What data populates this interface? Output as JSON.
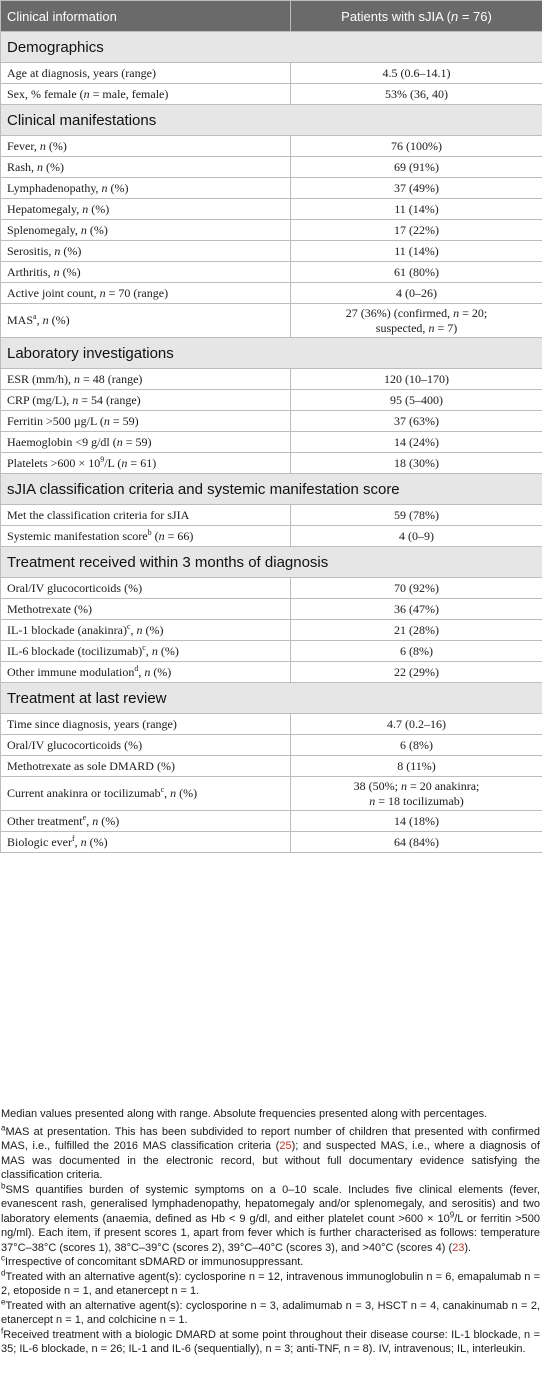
{
  "header": {
    "col1": "Clinical information",
    "col2_prefix": "Patients with sJIA (",
    "col2_n": "n",
    "col2_suffix": " = 76)"
  },
  "sections": {
    "demographics": "Demographics",
    "clinical": "Clinical manifestations",
    "lab": "Laboratory investigations",
    "criteria": "sJIA classification criteria and systemic manifestation score",
    "treat3m": "Treatment received within 3 months of diagnosis",
    "last": "Treatment at last review"
  },
  "rows": {
    "age": {
      "label": "Age at diagnosis, years (range)",
      "value": "4.5 (0.6–14.1)"
    },
    "sex": {
      "a": "Sex, % female (",
      "n": "n",
      "b": " = male, female)",
      "value": "53% (36, 40)"
    },
    "fever": {
      "a": "Fever, ",
      "n": "n",
      "b": " (%)",
      "value": "76 (100%)"
    },
    "rash": {
      "a": "Rash, ",
      "n": "n",
      "b": " (%)",
      "value": "69 (91%)"
    },
    "lymph": {
      "a": "Lymphadenopathy, ",
      "n": "n",
      "b": " (%)",
      "value": "37 (49%)"
    },
    "hepato": {
      "a": "Hepatomegaly, ",
      "n": "n",
      "b": " (%)",
      "value": "11 (14%)"
    },
    "spleno": {
      "a": "Splenomegaly, ",
      "n": "n",
      "b": " (%)",
      "value": "17 (22%)"
    },
    "sero": {
      "a": "Serositis, ",
      "n": "n",
      "b": " (%)",
      "value": "11 (14%)"
    },
    "arth": {
      "a": "Arthritis, ",
      "n": "n",
      "b": " (%)",
      "value": "61 (80%)"
    },
    "ajc": {
      "a": "Active joint count, ",
      "n": "n",
      "b": " = 70 (range)",
      "value": "4 (0–26)"
    },
    "mas": {
      "a": "MAS",
      "sup": "a",
      "b": ", ",
      "n": "n",
      "c": " (%)",
      "v1": "27 (36%) (confirmed, ",
      "vn1": "n",
      "v2": " = 20;",
      "v3": "suspected, ",
      "vn2": "n",
      "v4": " = 7)"
    },
    "esr": {
      "a": "ESR (mm/h), ",
      "n": "n",
      "b": " = 48 (range)",
      "value": "120 (10–170)"
    },
    "crp": {
      "a": "CRP (mg/L), ",
      "n": "n",
      "b": " = 54 (range)",
      "value": "95 (5–400)"
    },
    "ferr": {
      "a": "Ferritin >500 µg/L (",
      "n": "n",
      "b": " = 59)",
      "value": "37 (63%)"
    },
    "hb": {
      "a": "Haemoglobin <9 g/dl (",
      "n": "n",
      "b": " = 59)",
      "value": "14 (24%)"
    },
    "plt": {
      "a": "Platelets >600 × 10",
      "sup": "9",
      "b": "/L (",
      "n": "n",
      "c": " = 61)",
      "value": "18 (30%)"
    },
    "met": {
      "label": "Met the classification criteria for sJIA",
      "value": "59 (78%)"
    },
    "sms": {
      "a": "Systemic manifestation score",
      "sup": "b",
      "b": " (",
      "n": "n",
      "c": " = 66)",
      "value": "4 (0–9)"
    },
    "gc3": {
      "label": "Oral/IV glucocorticoids (%)",
      "value": "70 (92%)"
    },
    "mtx3": {
      "label": "Methotrexate (%)",
      "value": "36 (47%)"
    },
    "il1": {
      "a": "IL-1 blockade (anakinra)",
      "sup": "c",
      "b": ", ",
      "n": "n",
      "c": " (%)",
      "value": "21 (28%)"
    },
    "il6": {
      "a": "IL-6 blockade (tocilizumab)",
      "sup": "c",
      "b": ", ",
      "n": "n",
      "c": " (%)",
      "value": "6 (8%)"
    },
    "oim": {
      "a": "Other immune modulation",
      "sup": "d",
      "b": ", ",
      "n": "n",
      "c": " (%)",
      "value": "22 (29%)"
    },
    "time": {
      "label": "Time since diagnosis, years (range)",
      "value": "4.7 (0.2–16)"
    },
    "gcl": {
      "label": "Oral/IV glucocorticoids (%)",
      "value": "6 (8%)"
    },
    "mtxl": {
      "label": "Methotrexate as sole DMARD (%)",
      "value": "8 (11%)"
    },
    "cur": {
      "a": "Current anakinra or tocilizumab",
      "sup": "c",
      "b": ", ",
      "n": "n",
      "c": " (%)",
      "v1": "38 (50%; ",
      "vn1": "n",
      "v2": " = 20 anakinra;",
      "vn2": "n",
      "v3": " = 18 tocilizumab)"
    },
    "oth": {
      "a": "Other treatment",
      "sup": "e",
      "b": ", ",
      "n": "n",
      "c": " (%)",
      "value": "14 (18%)"
    },
    "bio": {
      "a": "Biologic ever",
      "sup": "f",
      "b": ", ",
      "n": "n",
      "c": " (%)",
      "value": "64 (84%)"
    }
  },
  "notes": {
    "intro": "Median values presented along with range. Absolute frequencies presented along with percentages.",
    "a_mark": "a",
    "a_text1": "MAS at presentation. This has been subdivided to report number of children that presented with confirmed MAS, i.e., fulfilled the 2016 MAS classification criteria (",
    "a_ref": "25",
    "a_text2": "); and suspected MAS, i.e., where a diagnosis of MAS was documented in the electronic record, but without full documentary evidence satisfying the classification criteria.",
    "b_mark": "b",
    "b_text1": "SMS quantifies burden of systemic symptoms on a 0–10 scale. Includes five clinical elements (fever, evanescent rash, generalised lymphadenopathy, hepatomegaly and/or splenomegaly, and serositis) and two laboratory elements (anaemia, defined as Hb < 9 g/dl, and either platelet count >600 × 10",
    "b_sup": "9",
    "b_text2": "/L or ferritin >500 ng/ml). Each item, if present scores 1, apart from fever which is further characterised as follows: temperature 37°C–38°C (scores 1), 38°C–39°C (scores 2), 39°C–40°C (scores 3), and >40°C (scores 4) (",
    "b_ref": "23",
    "b_text3": ").",
    "c_mark": "c",
    "c_text": "Irrespective of concomitant sDMARD or immunosuppressant.",
    "d_mark": "d",
    "d_text": "Treated with an alternative agent(s): cyclosporine n = 12, intravenous immunoglobulin n = 6, emapalumab n = 2, etoposide n = 1, and etanercept n = 1.",
    "e_mark": "e",
    "e_text": "Treated with an alternative agent(s): cyclosporine n = 3, adalimumab n = 3, HSCT n = 4, canakinumab n = 2, etanercept n = 1, and colchicine n = 1.",
    "f_mark": "f",
    "f_text": "Received treatment with a biologic DMARD at some point throughout their disease course: IL-1 blockade, n = 35; IL-6 blockade, n = 26; IL-1 and IL-6 (sequentially), n = 3; anti-TNF, n = 8). IV, intravenous; IL, interleukin."
  }
}
